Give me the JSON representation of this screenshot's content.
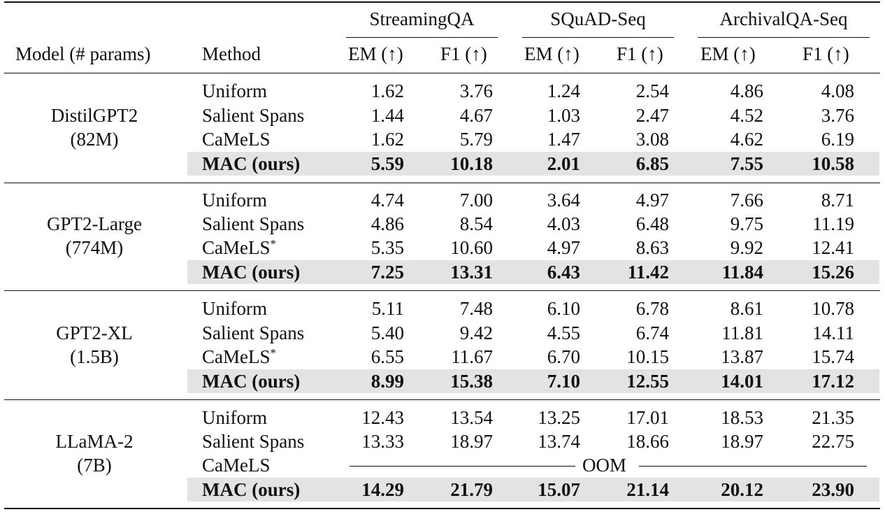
{
  "table": {
    "groups": [
      "StreamingQA",
      "SQuAD-Seq",
      "ArchivalQA-Seq"
    ],
    "header": {
      "model": "Model (# params)",
      "method": "Method",
      "metrics": [
        "EM (↑)",
        "F1 (↑)",
        "EM (↑)",
        "F1 (↑)",
        "EM (↑)",
        "F1 (↑)"
      ]
    },
    "blocks": [
      {
        "model": "DistilGPT2",
        "params": "(82M)",
        "rows": [
          {
            "method": "Uniform",
            "values": [
              "1.62",
              "3.76",
              "1.24",
              "2.54",
              "4.86",
              "4.08"
            ]
          },
          {
            "method": "Salient Spans",
            "values": [
              "1.44",
              "4.67",
              "1.03",
              "2.47",
              "4.52",
              "3.76"
            ]
          },
          {
            "method": "CaMeLS",
            "values": [
              "1.62",
              "5.79",
              "1.47",
              "3.08",
              "4.62",
              "6.19"
            ]
          },
          {
            "method": "MAC (ours)",
            "values": [
              "5.59",
              "10.18",
              "2.01",
              "6.85",
              "7.55",
              "10.58"
            ]
          }
        ]
      },
      {
        "model": "GPT2-Large",
        "params": "(774M)",
        "rows": [
          {
            "method": "Uniform",
            "values": [
              "4.74",
              "7.00",
              "3.64",
              "4.97",
              "7.66",
              "8.71"
            ]
          },
          {
            "method": "Salient Spans",
            "values": [
              "4.86",
              "8.54",
              "4.03",
              "6.48",
              "9.75",
              "11.19"
            ]
          },
          {
            "method": "CaMeLS*",
            "values": [
              "5.35",
              "10.60",
              "4.97",
              "8.63",
              "9.92",
              "12.41"
            ]
          },
          {
            "method": "MAC (ours)",
            "values": [
              "7.25",
              "13.31",
              "6.43",
              "11.42",
              "11.84",
              "15.26"
            ]
          }
        ]
      },
      {
        "model": "GPT2-XL",
        "params": "(1.5B)",
        "rows": [
          {
            "method": "Uniform",
            "values": [
              "5.11",
              "7.48",
              "6.10",
              "6.78",
              "8.61",
              "10.78"
            ]
          },
          {
            "method": "Salient Spans",
            "values": [
              "5.40",
              "9.42",
              "4.55",
              "6.74",
              "11.81",
              "14.11"
            ]
          },
          {
            "method": "CaMeLS*",
            "values": [
              "6.55",
              "11.67",
              "6.70",
              "10.15",
              "13.87",
              "15.74"
            ]
          },
          {
            "method": "MAC (ours)",
            "values": [
              "8.99",
              "15.38",
              "7.10",
              "12.55",
              "14.01",
              "17.12"
            ]
          }
        ]
      },
      {
        "model": "LLaMA-2",
        "params": "(7B)",
        "rows": [
          {
            "method": "Uniform",
            "values": [
              "12.43",
              "13.54",
              "13.25",
              "17.01",
              "18.53",
              "21.35"
            ]
          },
          {
            "method": "Salient Spans",
            "values": [
              "13.33",
              "18.97",
              "13.74",
              "18.66",
              "18.97",
              "22.75"
            ]
          },
          {
            "method": "CaMeLS",
            "oom": "OOM"
          },
          {
            "method": "MAC (ours)",
            "values": [
              "14.29",
              "21.79",
              "15.07",
              "21.14",
              "20.12",
              "23.90"
            ]
          }
        ]
      }
    ]
  }
}
